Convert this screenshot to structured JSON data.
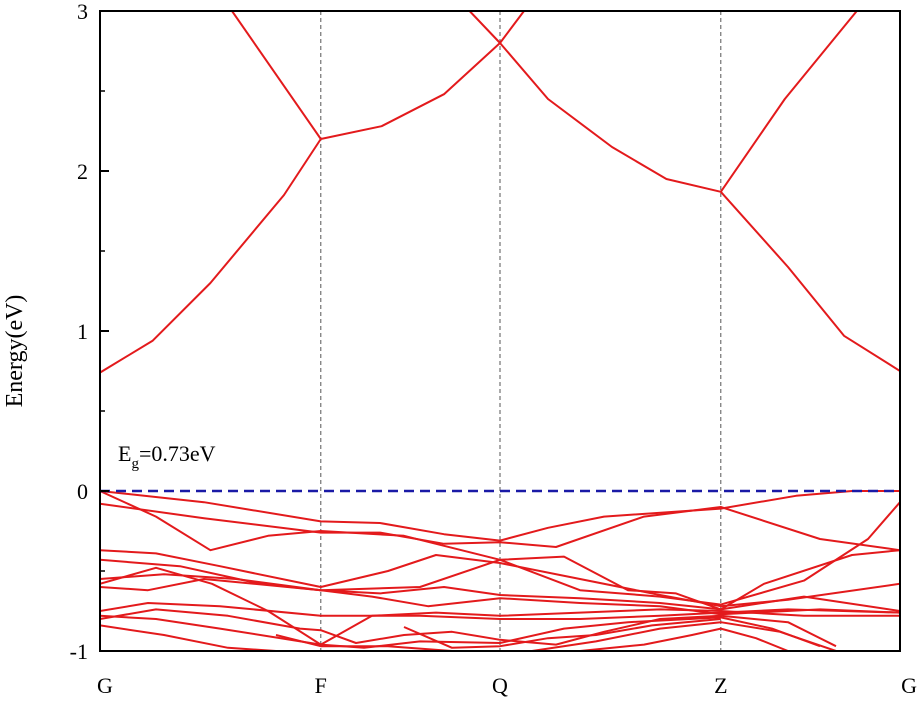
{
  "chart_data": {
    "type": "line",
    "title": "",
    "ylabel": "Energy(eV)",
    "xlabel": "",
    "ylim": [
      -1,
      3
    ],
    "y_ticks": [
      -1,
      0,
      1,
      2,
      3
    ],
    "y_tick_labels": [
      "-1",
      "0",
      "1",
      "2",
      "3"
    ],
    "k_points": [
      {
        "label": "G",
        "x": 0
      },
      {
        "label": "F",
        "x": 0.276
      },
      {
        "label": "Q",
        "x": 0.5
      },
      {
        "label": "Z",
        "x": 0.776
      },
      {
        "label": "G",
        "x": 1
      }
    ],
    "fermi_level": 0,
    "annotation": {
      "main": "E",
      "sub": "g",
      "rest": "=0.73eV"
    },
    "colors": {
      "bands": "#e31a1c",
      "fermi": "#1a1aa6",
      "kline": "#555555"
    },
    "series": [
      {
        "points": [
          [
            0,
            0.74
          ],
          [
            0.066,
            0.94
          ],
          [
            0.138,
            1.3
          ],
          [
            0.23,
            1.85
          ],
          [
            0.276,
            2.2
          ],
          [
            0.352,
            2.28
          ],
          [
            0.43,
            2.48
          ],
          [
            0.5,
            2.8
          ],
          [
            0.53,
            3.0
          ]
        ]
      },
      {
        "points": [
          [
            0.165,
            3.0
          ],
          [
            0.276,
            2.2
          ]
        ]
      },
      {
        "points": [
          [
            0.462,
            3.0
          ],
          [
            0.5,
            2.8
          ],
          [
            0.56,
            2.45
          ],
          [
            0.64,
            2.15
          ],
          [
            0.708,
            1.95
          ],
          [
            0.776,
            1.87
          ],
          [
            0.86,
            1.4
          ],
          [
            0.93,
            0.97
          ],
          [
            1,
            0.75
          ]
        ]
      },
      {
        "points": [
          [
            0.776,
            1.87
          ],
          [
            0.856,
            2.45
          ],
          [
            0.946,
            3.0
          ]
        ]
      },
      {
        "points": [
          [
            0,
            0
          ],
          [
            0.13,
            -0.07
          ],
          [
            0.276,
            -0.19
          ],
          [
            0.35,
            -0.2
          ],
          [
            0.43,
            -0.27
          ],
          [
            0.5,
            -0.31
          ],
          [
            0.56,
            -0.23
          ],
          [
            0.63,
            -0.16
          ],
          [
            0.776,
            -0.11
          ],
          [
            0.87,
            -0.03
          ],
          [
            0.94,
            0
          ],
          [
            1,
            0
          ]
        ]
      },
      {
        "points": [
          [
            0,
            -0.08
          ],
          [
            0.13,
            -0.17
          ],
          [
            0.276,
            -0.26
          ],
          [
            0.35,
            -0.26
          ],
          [
            0.43,
            -0.33
          ],
          [
            0.5,
            -0.32
          ],
          [
            0.57,
            -0.35
          ],
          [
            0.68,
            -0.16
          ],
          [
            0.776,
            -0.1
          ],
          [
            0.9,
            -0.3
          ],
          [
            1,
            -0.37
          ]
        ]
      },
      {
        "points": [
          [
            0,
            0
          ],
          [
            0.07,
            -0.16
          ],
          [
            0.138,
            -0.37
          ],
          [
            0.21,
            -0.28
          ],
          [
            0.276,
            -0.25
          ],
          [
            0.38,
            -0.28
          ],
          [
            0.5,
            -0.43
          ],
          [
            0.58,
            -0.41
          ],
          [
            0.66,
            -0.62
          ],
          [
            0.72,
            -0.64
          ],
          [
            0.776,
            -0.74
          ],
          [
            0.83,
            -0.58
          ],
          [
            0.94,
            -0.4
          ],
          [
            1,
            -0.37
          ]
        ]
      },
      {
        "points": [
          [
            0,
            -0.37
          ],
          [
            0.07,
            -0.39
          ],
          [
            0.15,
            -0.47
          ],
          [
            0.276,
            -0.6
          ],
          [
            0.36,
            -0.5
          ],
          [
            0.42,
            -0.4
          ],
          [
            0.5,
            -0.45
          ],
          [
            0.6,
            -0.55
          ],
          [
            0.7,
            -0.65
          ],
          [
            0.776,
            -0.72
          ],
          [
            0.86,
            -0.68
          ],
          [
            1,
            -0.58
          ]
        ]
      },
      {
        "points": [
          [
            0,
            -0.43
          ],
          [
            0.1,
            -0.47
          ],
          [
            0.2,
            -0.58
          ],
          [
            0.276,
            -0.62
          ],
          [
            0.4,
            -0.6
          ],
          [
            0.5,
            -0.43
          ],
          [
            0.6,
            -0.62
          ],
          [
            0.7,
            -0.66
          ],
          [
            0.776,
            -0.71
          ],
          [
            0.88,
            -0.56
          ],
          [
            0.96,
            -0.3
          ],
          [
            1,
            -0.07
          ]
        ]
      },
      {
        "points": [
          [
            0,
            -0.55
          ],
          [
            0.08,
            -0.52
          ],
          [
            0.17,
            -0.55
          ],
          [
            0.276,
            -0.62
          ],
          [
            0.35,
            -0.64
          ],
          [
            0.43,
            -0.6
          ],
          [
            0.5,
            -0.65
          ],
          [
            0.6,
            -0.67
          ],
          [
            0.7,
            -0.7
          ],
          [
            0.776,
            -0.74
          ],
          [
            0.88,
            -0.66
          ],
          [
            1,
            -0.75
          ]
        ]
      },
      {
        "points": [
          [
            0,
            -0.58
          ],
          [
            0.07,
            -0.48
          ],
          [
            0.14,
            -0.58
          ],
          [
            0.21,
            -0.75
          ],
          [
            0.276,
            -0.96
          ],
          [
            0.34,
            -0.78
          ],
          [
            0.42,
            -0.76
          ],
          [
            0.5,
            -0.78
          ],
          [
            0.6,
            -0.76
          ],
          [
            0.7,
            -0.74
          ],
          [
            0.776,
            -0.75
          ],
          [
            0.88,
            -0.78
          ],
          [
            1,
            -0.78
          ]
        ]
      },
      {
        "points": [
          [
            0,
            -0.6
          ],
          [
            0.06,
            -0.62
          ],
          [
            0.13,
            -0.55
          ],
          [
            0.276,
            -0.62
          ],
          [
            0.34,
            -0.66
          ],
          [
            0.41,
            -0.72
          ],
          [
            0.5,
            -0.67
          ],
          [
            0.6,
            -0.7
          ],
          [
            0.7,
            -0.72
          ],
          [
            0.776,
            -0.77
          ],
          [
            0.9,
            -0.74
          ],
          [
            1,
            -0.76
          ]
        ]
      },
      {
        "points": [
          [
            0,
            -0.75
          ],
          [
            0.06,
            -0.7
          ],
          [
            0.15,
            -0.72
          ],
          [
            0.276,
            -0.78
          ],
          [
            0.4,
            -0.78
          ],
          [
            0.5,
            -0.8
          ],
          [
            0.6,
            -0.8
          ],
          [
            0.7,
            -0.78
          ],
          [
            0.776,
            -0.76
          ],
          [
            0.86,
            -0.74
          ],
          [
            1,
            -0.76
          ]
        ]
      },
      {
        "points": [
          [
            0,
            -0.78
          ],
          [
            0.07,
            -0.8
          ],
          [
            0.15,
            -0.86
          ],
          [
            0.276,
            -0.96
          ],
          [
            0.33,
            -0.98
          ],
          [
            0.4,
            -0.94
          ],
          [
            0.5,
            -0.95
          ],
          [
            0.58,
            -0.86
          ],
          [
            0.66,
            -0.82
          ],
          [
            0.776,
            -0.79
          ],
          [
            0.84,
            -0.86
          ],
          [
            0.9,
            -0.97
          ]
        ]
      },
      {
        "points": [
          [
            0,
            -0.8
          ],
          [
            0.07,
            -0.74
          ],
          [
            0.16,
            -0.78
          ],
          [
            0.25,
            -0.86
          ],
          [
            0.276,
            -0.87
          ],
          [
            0.32,
            -0.95
          ],
          [
            0.38,
            -0.9
          ],
          [
            0.44,
            -0.88
          ],
          [
            0.5,
            -0.93
          ],
          [
            0.57,
            -0.96
          ],
          [
            0.63,
            -0.88
          ],
          [
            0.7,
            -0.8
          ],
          [
            0.776,
            -0.78
          ],
          [
            0.86,
            -0.82
          ],
          [
            0.92,
            -0.97
          ]
        ]
      },
      {
        "points": [
          [
            0,
            -0.84
          ],
          [
            0.08,
            -0.9
          ],
          [
            0.16,
            -0.98
          ],
          [
            0.22,
            -1.0
          ]
        ]
      },
      {
        "points": [
          [
            0.22,
            -0.9
          ],
          [
            0.276,
            -0.97
          ],
          [
            0.36,
            -0.97
          ],
          [
            0.44,
            -1.0
          ]
        ]
      },
      {
        "points": [
          [
            0.54,
            -1.0
          ],
          [
            0.62,
            -0.94
          ],
          [
            0.7,
            -0.86
          ],
          [
            0.776,
            -0.82
          ],
          [
            0.85,
            -0.88
          ],
          [
            0.92,
            -1.0
          ]
        ]
      },
      {
        "points": [
          [
            0.6,
            -1.0
          ],
          [
            0.68,
            -0.96
          ],
          [
            0.74,
            -0.9
          ],
          [
            0.776,
            -0.86
          ],
          [
            0.82,
            -0.92
          ],
          [
            0.86,
            -1.0
          ]
        ]
      },
      {
        "points": [
          [
            0.38,
            -0.85
          ],
          [
            0.44,
            -0.98
          ],
          [
            0.5,
            -0.97
          ],
          [
            0.56,
            -0.92
          ],
          [
            0.62,
            -0.9
          ],
          [
            0.69,
            -0.84
          ],
          [
            0.776,
            -0.8
          ]
        ]
      }
    ]
  }
}
